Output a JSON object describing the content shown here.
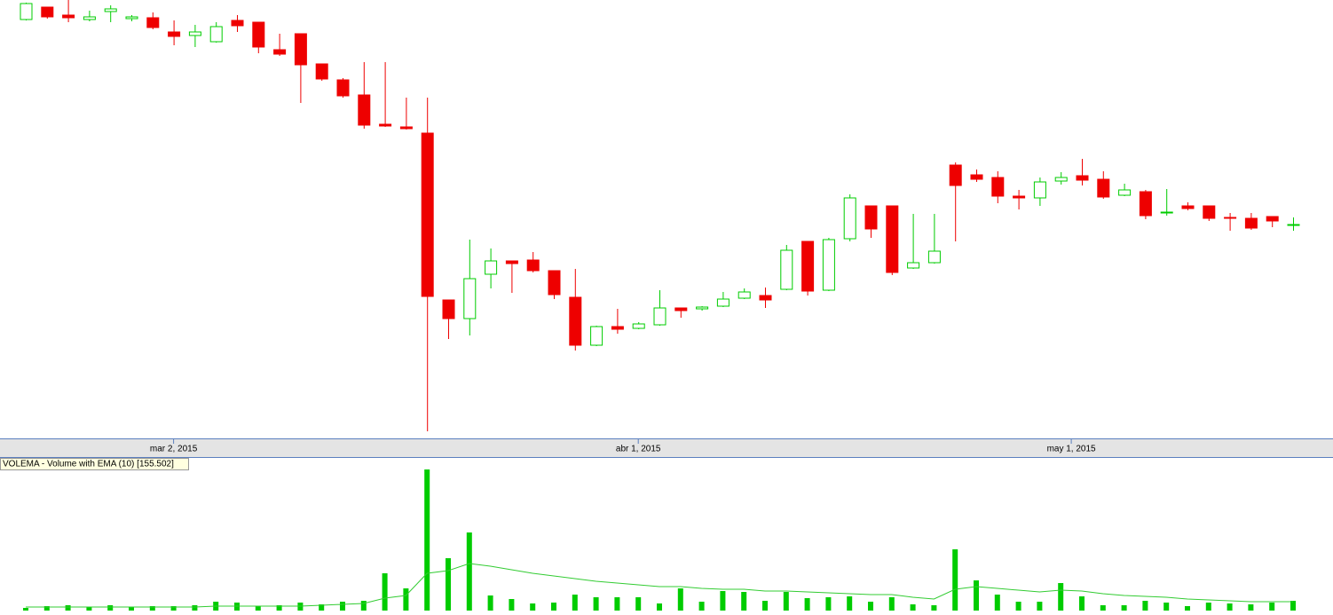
{
  "chart_data": [
    {
      "type": "candlestick",
      "up_color": "#00cc00",
      "down_color": "#ee0000",
      "ylim": [
        6,
        500
      ],
      "xlim": [
        0,
        61
      ],
      "xticks": [
        {
          "value": 7,
          "label": "mar 2, 2015"
        },
        {
          "value": 29,
          "label": "abr 1, 2015"
        },
        {
          "value": 49.5,
          "label": "may 1, 2015"
        }
      ],
      "open": [
        478,
        492,
        483,
        478,
        487,
        479,
        480,
        464,
        460,
        453,
        477,
        475,
        444,
        462,
        428,
        410,
        393,
        360,
        357,
        350,
        162,
        141,
        191,
        206,
        207,
        195,
        165,
        111,
        132,
        130,
        134,
        153,
        152,
        155,
        164,
        167,
        174,
        228,
        173,
        231,
        268,
        268,
        198,
        204,
        314,
        303,
        300,
        279,
        277,
        296,
        302,
        298,
        280,
        284,
        260,
        268,
        268,
        255,
        254,
        256,
        246
      ],
      "high": [
        497,
        492,
        500,
        488,
        494,
        483,
        486,
        477,
        472,
        475,
        483,
        475,
        462,
        462,
        428,
        412,
        430,
        430,
        390,
        390,
        162,
        230,
        220,
        206,
        216,
        195,
        197,
        133,
        152,
        137,
        173,
        153,
        155,
        171,
        175,
        176,
        224,
        228,
        232,
        281,
        268,
        268,
        259,
        259,
        317,
        309,
        307,
        286,
        300,
        306,
        321,
        307,
        293,
        286,
        287,
        272,
        268,
        260,
        260,
        256,
        255
      ],
      "low": [
        477,
        479,
        475,
        476,
        475,
        476,
        467,
        449,
        447,
        452,
        464,
        440,
        437,
        384,
        409,
        390,
        355,
        357,
        354,
        14,
        118,
        122,
        175,
        170,
        193,
        163,
        105,
        110,
        124,
        129,
        133,
        142,
        150,
        154,
        163,
        153,
        173,
        167,
        172,
        228,
        232,
        190,
        197,
        203,
        228,
        295,
        271,
        264,
        268,
        292,
        291,
        276,
        279,
        253,
        257,
        263,
        251,
        240,
        241,
        244,
        240
      ],
      "close": [
        496,
        481,
        480,
        481,
        490,
        481,
        469,
        459,
        464,
        470,
        471,
        447,
        439,
        427,
        411,
        392,
        359,
        358,
        355,
        166,
        141,
        186,
        206,
        203,
        195,
        168,
        111,
        132,
        129,
        135,
        153,
        150,
        154,
        163,
        171,
        162,
        218,
        172,
        230,
        277,
        242,
        193,
        204,
        217,
        291,
        298,
        279,
        277,
        295,
        300,
        297,
        278,
        286,
        257,
        261,
        265,
        254,
        254,
        243,
        251,
        247
      ]
    },
    {
      "type": "bar",
      "title": "VOLEMA - Volume with EMA (10) [155.502]",
      "ylim": [
        0,
        170
      ],
      "xlim": [
        0,
        61
      ],
      "series": [
        {
          "name": "Volume",
          "color": "#00cc00",
          "values": [
            3,
            5,
            6,
            4,
            6,
            4,
            5,
            5,
            6,
            10,
            9,
            5,
            6,
            9,
            7,
            10,
            11,
            42,
            25,
            159,
            59,
            88,
            17,
            13,
            8,
            9,
            18,
            15,
            15,
            15,
            8,
            25,
            10,
            22,
            21,
            11,
            21,
            14,
            15,
            16,
            10,
            15,
            7,
            6,
            69,
            34,
            18,
            10,
            10,
            31,
            16,
            6,
            6,
            11,
            9,
            5,
            9,
            8,
            7,
            9,
            11
          ]
        },
        {
          "name": "EMA (10)",
          "color": "#33cc33",
          "values": [
            4,
            4,
            4,
            4,
            4,
            4,
            4,
            4,
            4,
            5,
            5,
            5,
            5,
            5,
            6,
            7,
            8,
            14,
            17,
            42,
            45,
            53,
            50,
            46,
            42,
            39,
            36,
            33,
            31,
            29,
            27,
            27,
            25,
            24,
            24,
            22,
            22,
            21,
            20,
            19,
            18,
            18,
            15,
            13,
            24,
            27,
            25,
            23,
            21,
            23,
            22,
            19,
            17,
            16,
            15,
            13,
            12,
            11,
            10,
            10,
            10
          ]
        }
      ]
    }
  ]
}
